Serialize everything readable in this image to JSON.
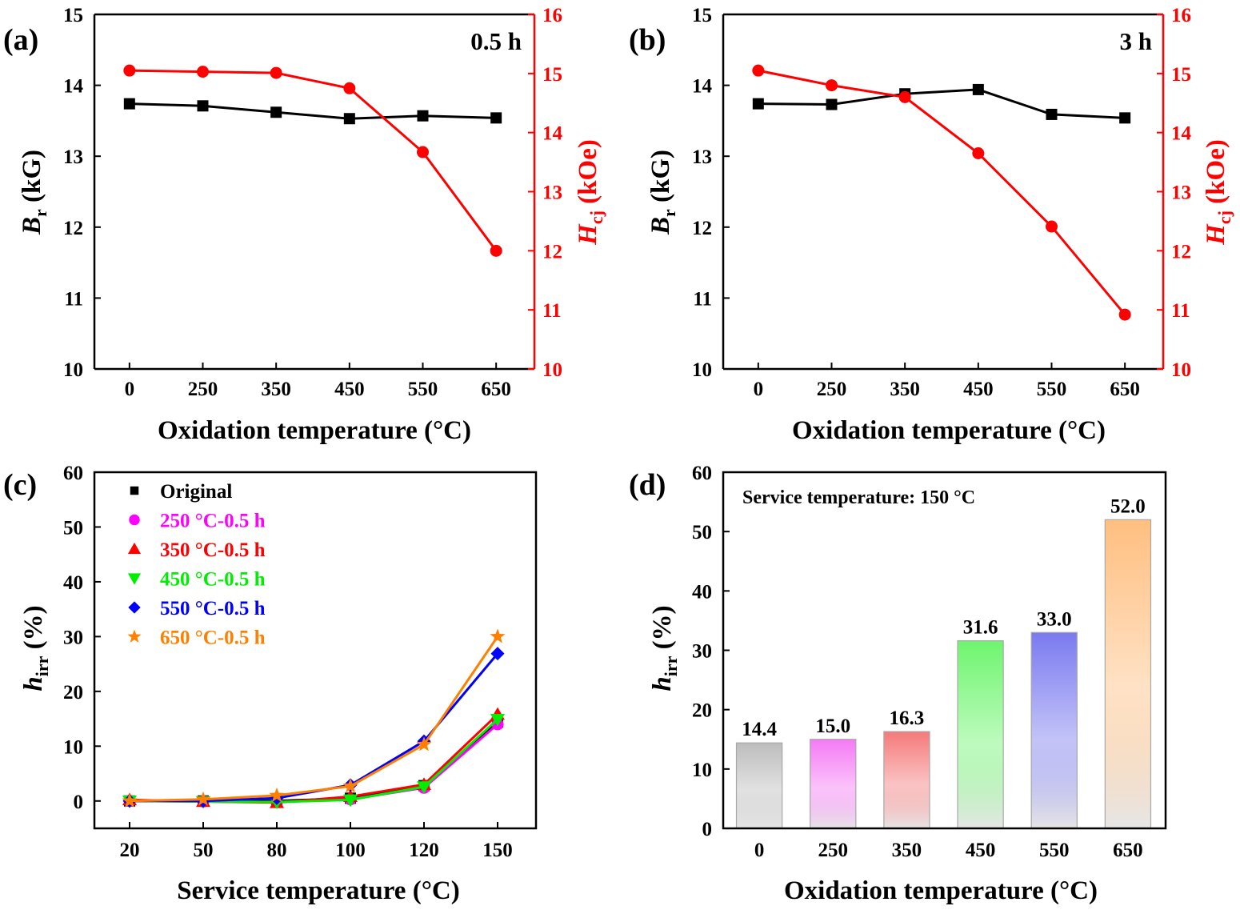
{
  "figure": {
    "panels": [
      "(a)",
      "(b)",
      "(c)",
      "(d)"
    ]
  },
  "colors": {
    "br": "#000000",
    "hcj": "#ff0000",
    "original": "#000000",
    "t250": "#ff00ff",
    "t350": "#ff0000",
    "t450": "#00ee00",
    "t550": "#0000ff",
    "t650": "#ff8000"
  },
  "chart_data": [
    {
      "id": "a",
      "type": "line",
      "panel_label": "(a)",
      "annotation": "0.5 h",
      "categories": [
        "0",
        "250",
        "350",
        "450",
        "550",
        "650"
      ],
      "xlabel": "Oxidation temperature (°C)",
      "ylabel_main": "B",
      "ylabel_sub": "r",
      "ylabel_unit": " (kG)",
      "y2label_main": "H",
      "y2label_sub": "cj",
      "y2label_unit": " (kOe)",
      "ylim": [
        10,
        15
      ],
      "yticks": [
        10,
        11,
        12,
        13,
        14,
        15
      ],
      "y2lim": [
        10,
        16
      ],
      "y2ticks": [
        10,
        11,
        12,
        13,
        14,
        15,
        16
      ],
      "series": [
        {
          "name": "Br",
          "axis": "left",
          "color": "#000000",
          "marker": "square",
          "values": [
            13.74,
            13.71,
            13.62,
            13.53,
            13.57,
            13.54
          ]
        },
        {
          "name": "Hcj",
          "axis": "right",
          "color": "#ff0000",
          "marker": "circle",
          "values": [
            15.05,
            15.03,
            15.01,
            14.75,
            13.67,
            12.0
          ]
        }
      ]
    },
    {
      "id": "b",
      "type": "line",
      "panel_label": "(b)",
      "annotation": "3 h",
      "categories": [
        "0",
        "250",
        "350",
        "450",
        "550",
        "650"
      ],
      "xlabel": "Oxidation temperature (°C)",
      "ylabel_main": "B",
      "ylabel_sub": "r",
      "ylabel_unit": " (kG)",
      "y2label_main": "H",
      "y2label_sub": "cj",
      "y2label_unit": " (kOe)",
      "ylim": [
        10,
        15
      ],
      "yticks": [
        10,
        11,
        12,
        13,
        14,
        15
      ],
      "y2lim": [
        10,
        16
      ],
      "y2ticks": [
        10,
        11,
        12,
        13,
        14,
        15,
        16
      ],
      "series": [
        {
          "name": "Br",
          "axis": "left",
          "color": "#000000",
          "marker": "square",
          "values": [
            13.74,
            13.73,
            13.88,
            13.94,
            13.59,
            13.54
          ]
        },
        {
          "name": "Hcj",
          "axis": "right",
          "color": "#ff0000",
          "marker": "circle",
          "values": [
            15.05,
            14.8,
            14.6,
            13.65,
            12.41,
            10.92
          ]
        }
      ]
    },
    {
      "id": "c",
      "type": "line",
      "panel_label": "(c)",
      "categories": [
        "20",
        "50",
        "80",
        "100",
        "120",
        "150"
      ],
      "xlabel": "Service temperature (°C)",
      "ylabel_main": "h",
      "ylabel_sub": "irr",
      "ylabel_unit": " (%)",
      "ylim": [
        -5,
        60
      ],
      "yticks": [
        0,
        10,
        20,
        30,
        40,
        50,
        60
      ],
      "legend_position": "top-left",
      "series": [
        {
          "name": "Original",
          "color": "#000000",
          "marker": "square",
          "values": [
            0,
            0,
            0,
            0.5,
            2.8,
            14.4
          ]
        },
        {
          "name": "250 °C-0.5 h",
          "color": "#ff00ff",
          "marker": "circle",
          "values": [
            0,
            -0.1,
            -0.2,
            0.3,
            2.4,
            14.0
          ]
        },
        {
          "name": "350 °C-0.5 h",
          "color": "#ff0000",
          "marker": "triangle-up",
          "values": [
            0.2,
            -0.1,
            -0.3,
            0.8,
            3.0,
            15.8
          ]
        },
        {
          "name": "450 °C-0.5 h",
          "color": "#00ee00",
          "marker": "triangle-down",
          "values": [
            0,
            -0.1,
            -0.2,
            0.2,
            2.6,
            14.9
          ]
        },
        {
          "name": "550 °C-0.5 h",
          "color": "#0000ff",
          "marker": "diamond",
          "values": [
            0,
            0,
            0.5,
            2.9,
            10.9,
            26.9
          ]
        },
        {
          "name": "650 °C-0.5 h",
          "color": "#ff8000",
          "marker": "star",
          "values": [
            0,
            0.3,
            1.0,
            2.7,
            10.3,
            30.0
          ]
        }
      ]
    },
    {
      "id": "d",
      "type": "bar",
      "panel_label": "(d)",
      "annotation": "Service temperature: 150 °C",
      "categories": [
        "0",
        "250",
        "350",
        "450",
        "550",
        "650"
      ],
      "values": [
        14.4,
        15.0,
        16.3,
        31.6,
        33.0,
        52.0
      ],
      "value_labels": [
        "14.4",
        "15.0",
        "16.3",
        "31.6",
        "33.0",
        "52.0"
      ],
      "bar_colors": [
        "#bdbdbd",
        "#f57af5",
        "#f57a7a",
        "#6ef56e",
        "#7a7af0",
        "#ffbf80"
      ],
      "xlabel": "Oxidation temperature (°C)",
      "ylabel_main": "h",
      "ylabel_sub": "irr",
      "ylabel_unit": " (%)",
      "ylim": [
        0,
        60
      ],
      "yticks": [
        0,
        10,
        20,
        30,
        40,
        50,
        60
      ]
    }
  ]
}
